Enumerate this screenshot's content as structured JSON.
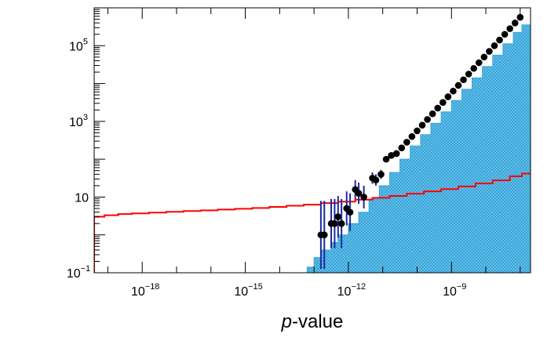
{
  "chart_data": {
    "type": "histogram",
    "xlabel_italic": "p",
    "xlabel_rest": "-value",
    "ylabel": "",
    "x_scale": "log",
    "y_scale": "log",
    "xlim": [
      4e-20,
      2e-07
    ],
    "ylim": [
      0.1,
      1000000
    ],
    "x_ticks": [
      {
        "base": "10",
        "exp": "−18",
        "value": 1e-18
      },
      {
        "base": "10",
        "exp": "−15",
        "value": 1e-15
      },
      {
        "base": "10",
        "exp": "−12",
        "value": 1e-12
      },
      {
        "base": "10",
        "exp": "−9",
        "value": 1e-09
      }
    ],
    "y_ticks": [
      {
        "base": "10",
        "exp": "−1",
        "value": 0.1
      },
      {
        "base": "10",
        "exp": "",
        "value": 10
      },
      {
        "base": "10",
        "exp": "3",
        "value": 1000
      },
      {
        "base": "10",
        "exp": "5",
        "value": 100000
      }
    ],
    "colors": {
      "observed_fill": "#3aa6d9",
      "observed_hatch": "#7fcdf2",
      "expected_line": "#ff0000",
      "data_points": "#000000",
      "error_bars": "#1a2a9c"
    },
    "series": [
      {
        "kind": "filled-histogram",
        "x_log10": [
          -13.5,
          -13.2,
          -13.0,
          -12.8,
          -12.5,
          -12.3,
          -12.0,
          -11.7,
          -11.4,
          -11.1,
          -10.8,
          -10.5,
          -10.2,
          -9.9,
          -9.6,
          -9.3,
          -9.0,
          -8.7,
          -8.4,
          -8.1,
          -7.8,
          -7.5,
          -7.2,
          -6.95
        ],
        "y_log10": [
          -1.0,
          -0.85,
          -0.6,
          -0.4,
          -0.2,
          0.0,
          0.3,
          0.6,
          0.95,
          1.3,
          1.65,
          2.0,
          2.35,
          2.65,
          2.95,
          3.25,
          3.55,
          3.85,
          4.15,
          4.45,
          4.75,
          5.05,
          5.35,
          5.55
        ]
      },
      {
        "kind": "step-line",
        "x_log10": [
          -19.4,
          -19.1,
          -18.7,
          -18.3,
          -17.8,
          -17.3,
          -16.8,
          -16.3,
          -15.8,
          -15.3,
          -14.8,
          -14.3,
          -13.8,
          -13.3,
          -12.8,
          -12.3,
          -11.8,
          -11.3,
          -10.8,
          -10.3,
          -9.8,
          -9.3,
          -8.8,
          -8.3,
          -7.8,
          -7.3,
          -6.95
        ],
        "y_log10": [
          0.48,
          0.52,
          0.55,
          0.57,
          0.59,
          0.61,
          0.63,
          0.65,
          0.67,
          0.69,
          0.71,
          0.74,
          0.77,
          0.8,
          0.84,
          0.88,
          0.93,
          0.98,
          1.03,
          1.09,
          1.15,
          1.21,
          1.28,
          1.36,
          1.44,
          1.55,
          1.62
        ]
      },
      {
        "kind": "points-with-errors",
        "x_log10": [
          -12.8,
          -12.7,
          -12.5,
          -12.4,
          -12.3,
          -12.2,
          -12.05,
          -11.95,
          -11.8,
          -11.7,
          -11.55,
          -11.3,
          -11.2,
          -11.05,
          -10.9,
          -10.75,
          -10.6,
          -10.45,
          -10.3,
          -10.15,
          -10.0,
          -9.85,
          -9.7,
          -9.55,
          -9.4,
          -9.25,
          -9.1,
          -8.95,
          -8.8,
          -8.65,
          -8.5,
          -8.35,
          -8.2,
          -8.05,
          -7.9,
          -7.75,
          -7.6,
          -7.45,
          -7.3,
          -7.15,
          -7.0
        ],
        "y_log10": [
          0.0,
          0.0,
          0.3,
          0.3,
          0.48,
          0.3,
          0.7,
          0.6,
          1.2,
          1.1,
          1.0,
          1.5,
          1.45,
          1.6,
          2.0,
          2.1,
          2.15,
          2.3,
          2.45,
          2.6,
          2.75,
          2.9,
          3.05,
          3.2,
          3.35,
          3.5,
          3.65,
          3.8,
          3.95,
          4.1,
          4.25,
          4.4,
          4.55,
          4.7,
          4.85,
          5.0,
          5.15,
          5.3,
          5.45,
          5.6,
          5.75
        ],
        "y_err_log10": [
          0.9,
          0.9,
          0.65,
          0.65,
          0.55,
          0.65,
          0.45,
          0.5,
          0.25,
          0.28,
          0.3,
          0.15,
          0.15,
          0.12,
          0.08,
          0.07,
          0.07,
          0.05,
          0.04,
          0.03,
          0.03,
          0.02,
          0.02,
          0.02,
          0.01,
          0.01,
          0.01,
          0.01,
          0.01,
          0.01,
          0.01,
          0.01,
          0.01,
          0.01,
          0.01,
          0.01,
          0.01,
          0.01,
          0.01,
          0.01,
          0.01
        ]
      }
    ]
  }
}
